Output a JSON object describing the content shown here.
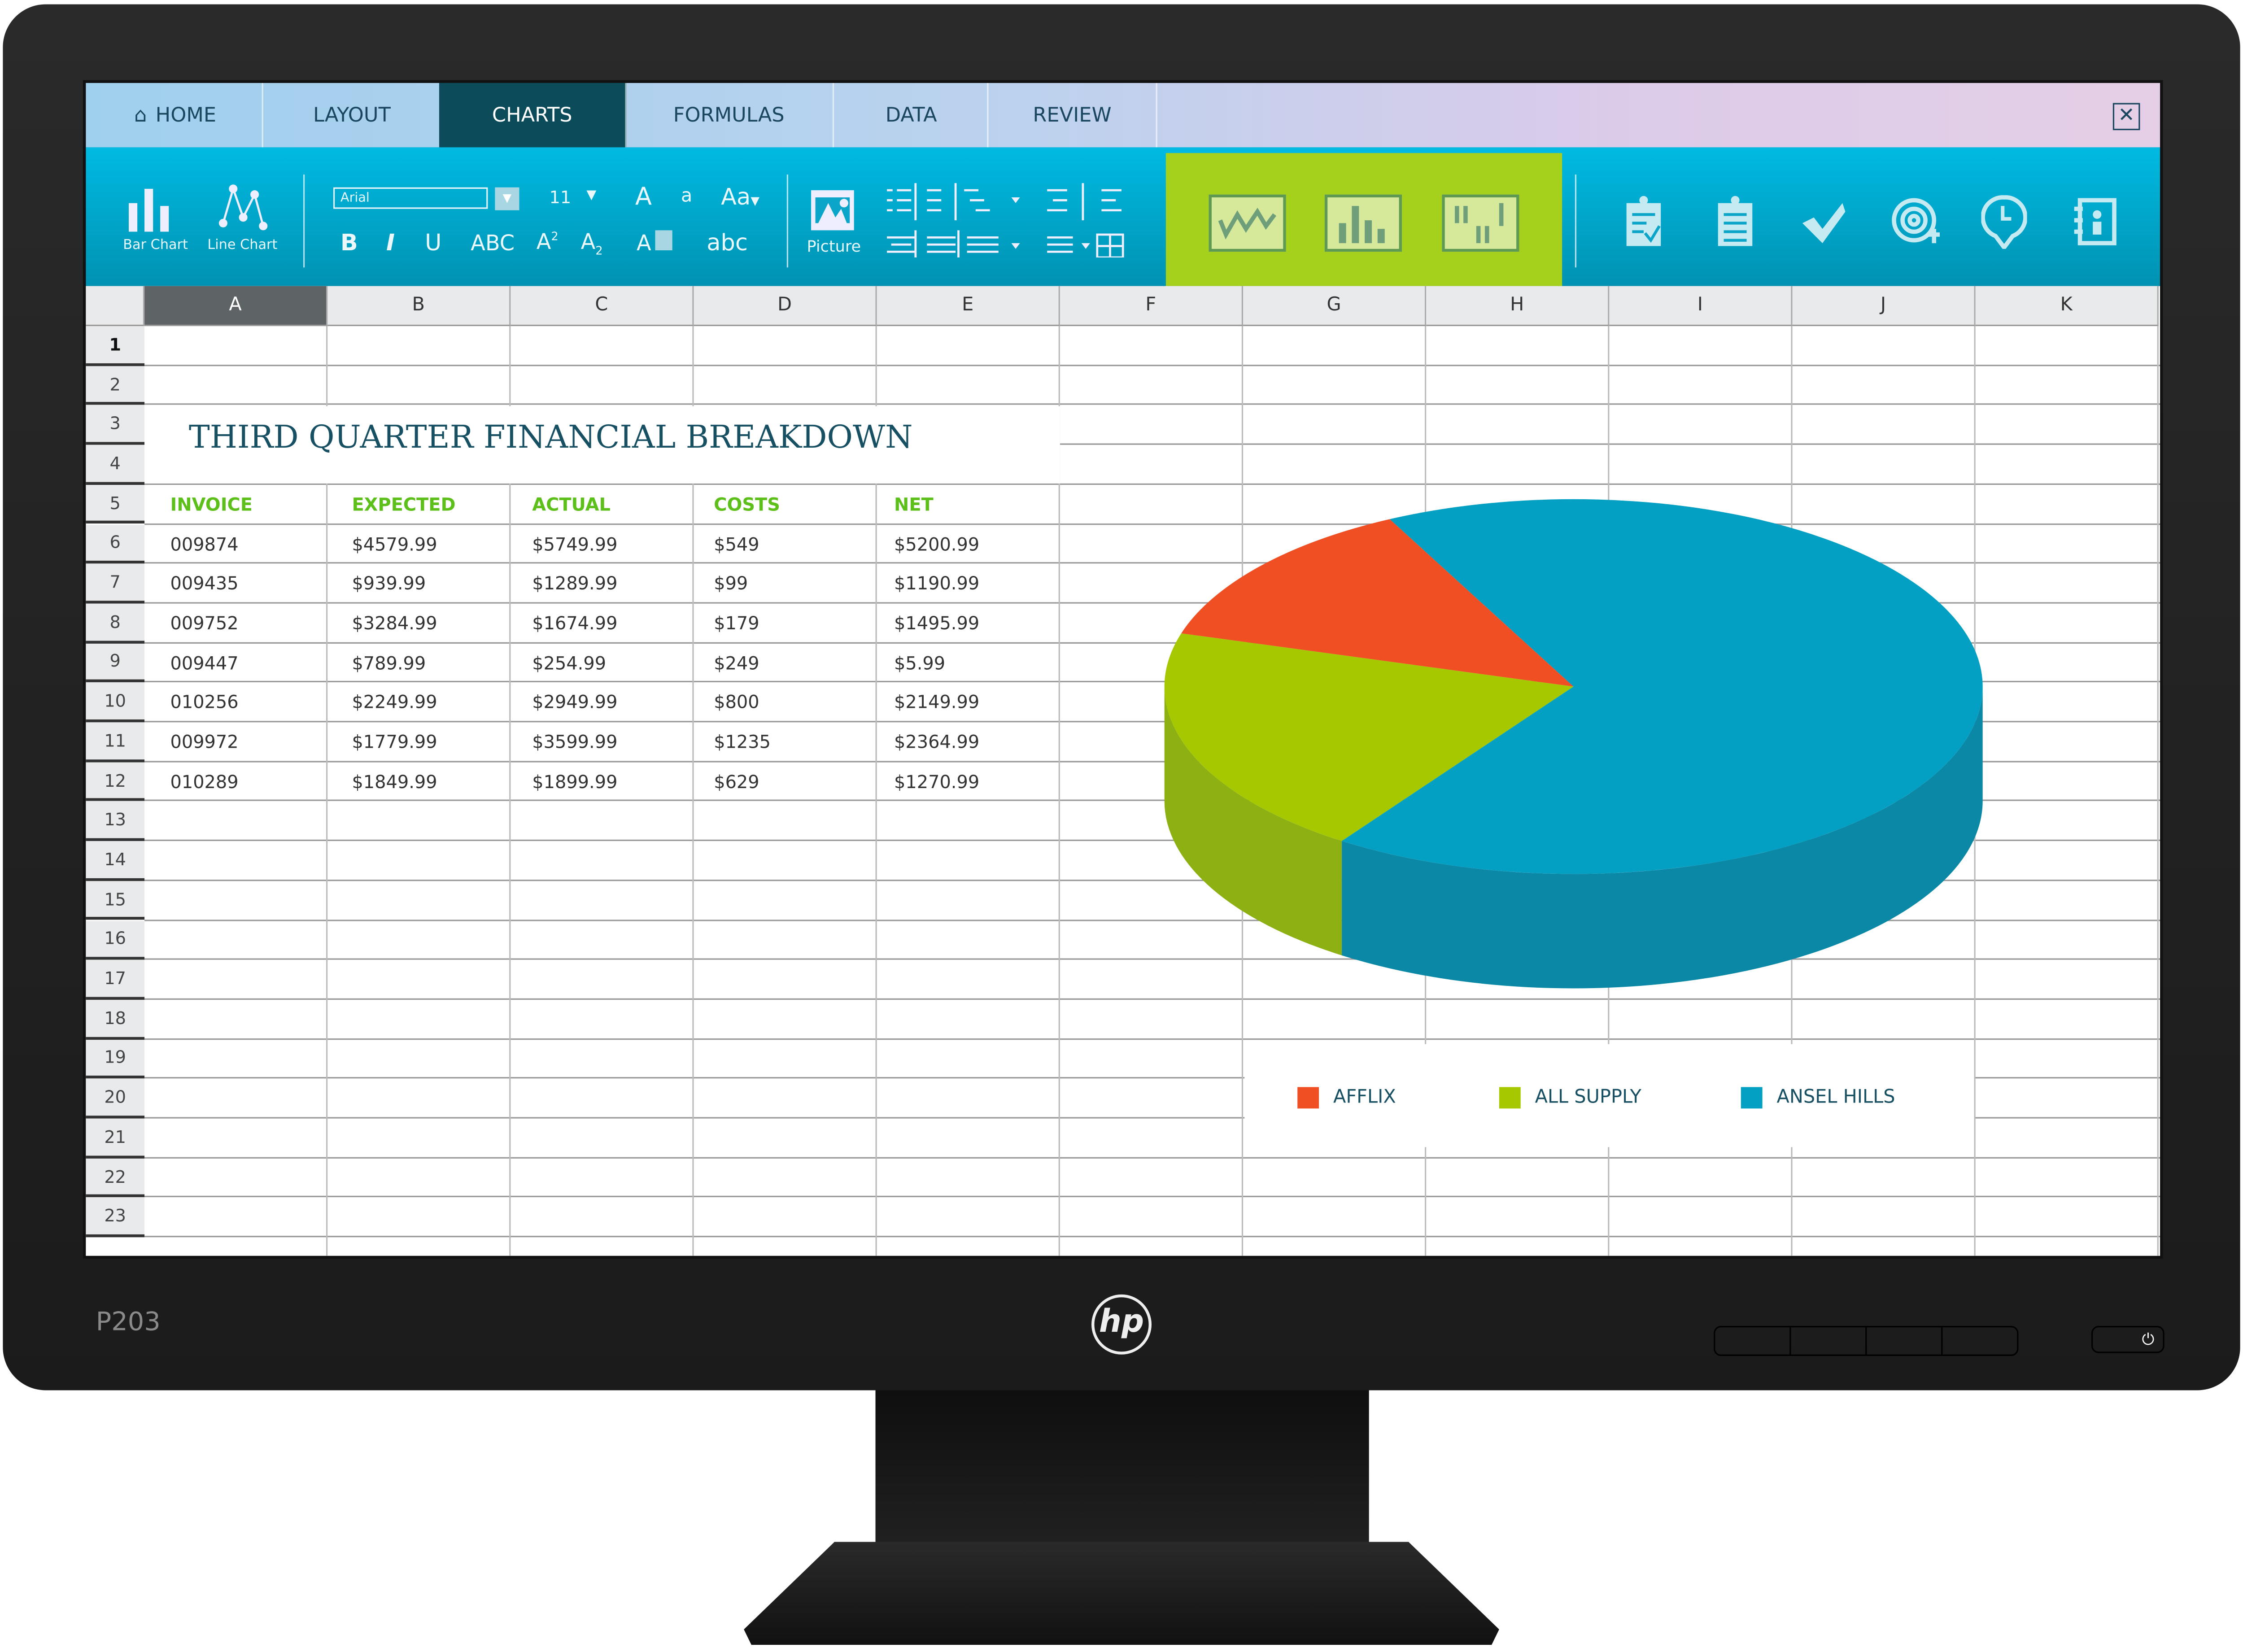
{
  "monitor": {
    "model": "P203",
    "brand": "hp"
  },
  "tabs": [
    {
      "label": "HOME",
      "icon": "home-icon"
    },
    {
      "label": "LAYOUT"
    },
    {
      "label": "CHARTS",
      "active": true
    },
    {
      "label": "FORMULAS"
    },
    {
      "label": "DATA"
    },
    {
      "label": "REVIEW"
    }
  ],
  "ribbon": {
    "bar_chart": "Bar Chart",
    "line_chart": "Line Chart",
    "font": "Arial",
    "font_size": "11",
    "grow": "A",
    "shrink": "a",
    "case": "Aa",
    "bold": "B",
    "italic": "I",
    "underline": "U",
    "strike": "ABC",
    "superscript": "A",
    "sup_mark": "2",
    "subscript": "A",
    "sub_mark": "2",
    "highlight": "A",
    "spell": "abc",
    "picture": "Picture"
  },
  "sheet": {
    "columns": [
      "A",
      "B",
      "C",
      "D",
      "E",
      "F",
      "G",
      "H",
      "I",
      "J",
      "K"
    ],
    "rows": [
      "1",
      "2",
      "3",
      "4",
      "5",
      "6",
      "7",
      "8",
      "9",
      "10",
      "11",
      "12",
      "13",
      "14",
      "15",
      "16",
      "17",
      "18",
      "19",
      "20",
      "21",
      "22",
      "23"
    ],
    "title": "THIRD QUARTER FINANCIAL BREAKDOWN",
    "headers": [
      "INVOICE",
      "EXPECTED",
      "ACTUAL",
      "COSTS",
      "NET"
    ],
    "data": [
      [
        "009874",
        "$4579.99",
        "$5749.99",
        "$549",
        "$5200.99"
      ],
      [
        "009435",
        "$939.99",
        "$1289.99",
        "$99",
        "$1190.99"
      ],
      [
        "009752",
        "$3284.99",
        "$1674.99",
        "$179",
        "$1495.99"
      ],
      [
        "009447",
        "$789.99",
        "$254.99",
        "$249",
        "$5.99"
      ],
      [
        "010256",
        "$2249.99",
        "$2949.99",
        "$800",
        "$2149.99"
      ],
      [
        "009972",
        "$1779.99",
        "$3599.99",
        "$1235",
        "$2364.99"
      ],
      [
        "010289",
        "$1849.99",
        "$1899.99",
        "$629",
        "$1270.99"
      ]
    ]
  },
  "chart_data": {
    "type": "pie",
    "style": "3d",
    "legend_position": "bottom",
    "categories": [
      "AFFLIX",
      "ALL SUPPLY",
      "ANSEL HILLS"
    ],
    "values": [
      13,
      20,
      67
    ],
    "colors": [
      "#f04e23",
      "#a6c800",
      "#03a0c4"
    ]
  },
  "colors": {
    "accent": "#00b4dc",
    "active_tab": "#0c4b59",
    "chart_group": "#a5d01c",
    "header_text": "#5cbf1a"
  }
}
